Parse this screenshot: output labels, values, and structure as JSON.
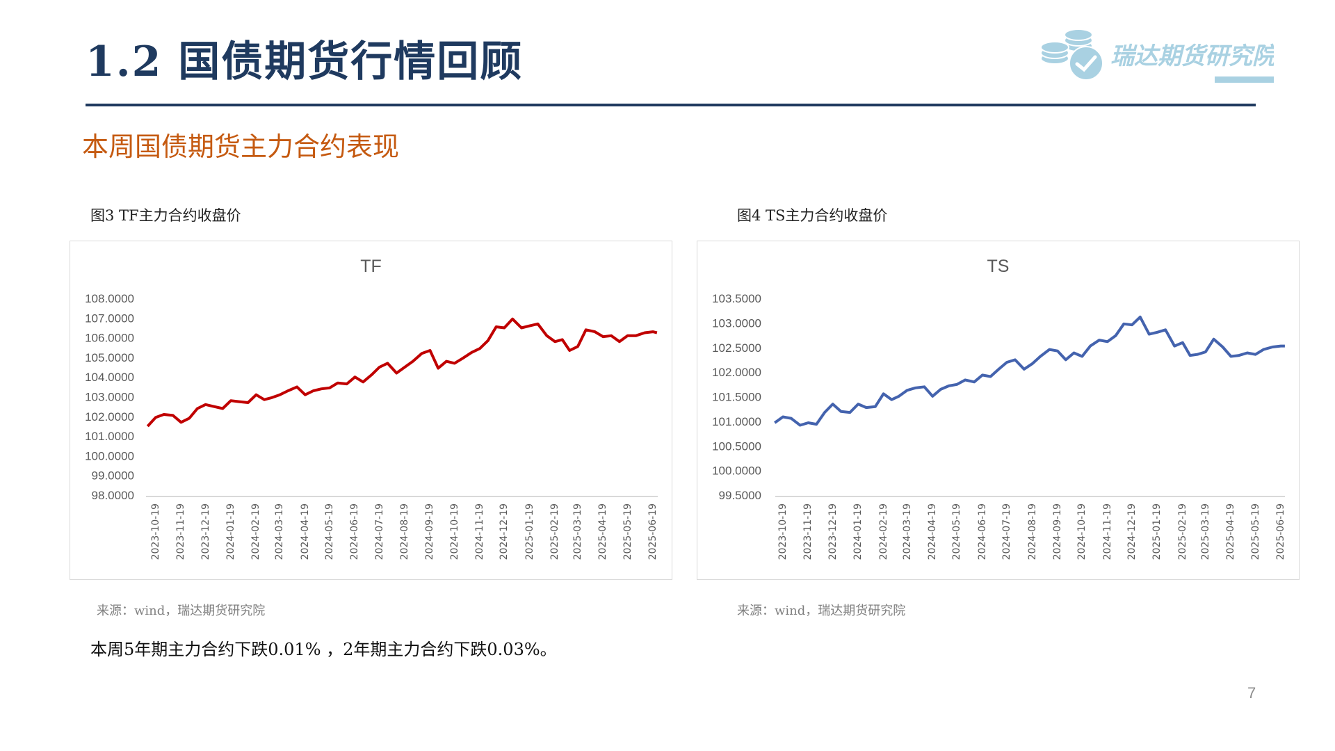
{
  "header": {
    "title": "1.2  国债期货行情回顾",
    "subtitle": "本周国债期货主力合约表现",
    "logo_text": "瑞达期货研究院",
    "logo_color": "#a9d1e2",
    "title_color": "#1f3a5f",
    "subtitle_color": "#c55a11"
  },
  "figures": [
    {
      "caption": "图3 TF主力合约收盘价",
      "source": "来源：wind，瑞达期货研究院"
    },
    {
      "caption": "图4 TS主力合约收盘价",
      "source": "来源：wind，瑞达期货研究院"
    }
  ],
  "summary": "本周5年期主力合约下跌0.01% ，2年期主力合约下跌0.03%。",
  "page_number": "7",
  "chart_data": [
    {
      "type": "line",
      "title": "TF",
      "ylim": [
        98,
        108
      ],
      "y_ticks": [
        "108.0000",
        "107.0000",
        "106.0000",
        "105.0000",
        "104.0000",
        "103.0000",
        "102.0000",
        "101.0000",
        "100.0000",
        "99.0000",
        "98.0000"
      ],
      "y_tick_values": [
        108,
        107,
        106,
        105,
        104,
        103,
        102,
        101,
        100,
        99,
        98
      ],
      "x_ticks": [
        "2023-10-19",
        "2023-11-19",
        "2023-12-19",
        "2024-01-19",
        "2024-02-19",
        "2024-03-19",
        "2024-04-19",
        "2024-05-19",
        "2024-06-19",
        "2024-07-19",
        "2024-08-19",
        "2024-09-19",
        "2024-10-19",
        "2024-11-19",
        "2024-12-19",
        "2025-01-19",
        "2025-02-19",
        "2025-03-19",
        "2025-04-19",
        "2025-05-19",
        "2025-06-19"
      ],
      "grid": false,
      "legend": "none",
      "color": "#c00000",
      "series": [
        {
          "points": [
            [
              "2023-10-09",
              101.5
            ],
            [
              "2023-10-19",
              101.95
            ],
            [
              "2023-10-29",
              102.1
            ],
            [
              "2023-11-09",
              102.05
            ],
            [
              "2023-11-19",
              101.7
            ],
            [
              "2023-11-29",
              101.9
            ],
            [
              "2023-12-09",
              102.4
            ],
            [
              "2023-12-19",
              102.6
            ],
            [
              "2023-12-29",
              102.5
            ],
            [
              "2024-01-09",
              102.4
            ],
            [
              "2024-01-19",
              102.8
            ],
            [
              "2024-01-29",
              102.75
            ],
            [
              "2024-02-09",
              102.7
            ],
            [
              "2024-02-19",
              103.1
            ],
            [
              "2024-02-29",
              102.85
            ],
            [
              "2024-03-09",
              102.95
            ],
            [
              "2024-03-19",
              103.1
            ],
            [
              "2024-03-29",
              103.3
            ],
            [
              "2024-04-09",
              103.5
            ],
            [
              "2024-04-19",
              103.1
            ],
            [
              "2024-04-29",
              103.3
            ],
            [
              "2024-05-09",
              103.4
            ],
            [
              "2024-05-19",
              103.45
            ],
            [
              "2024-05-29",
              103.7
            ],
            [
              "2024-06-09",
              103.65
            ],
            [
              "2024-06-19",
              104.0
            ],
            [
              "2024-06-29",
              103.75
            ],
            [
              "2024-07-09",
              104.1
            ],
            [
              "2024-07-19",
              104.5
            ],
            [
              "2024-07-29",
              104.7
            ],
            [
              "2024-08-09",
              104.2
            ],
            [
              "2024-08-19",
              104.5
            ],
            [
              "2024-08-29",
              104.8
            ],
            [
              "2024-09-09",
              105.2
            ],
            [
              "2024-09-19",
              105.35
            ],
            [
              "2024-09-29",
              104.45
            ],
            [
              "2024-10-09",
              104.8
            ],
            [
              "2024-10-19",
              104.7
            ],
            [
              "2024-10-29",
              104.95
            ],
            [
              "2024-11-09",
              105.25
            ],
            [
              "2024-11-19",
              105.45
            ],
            [
              "2024-11-29",
              105.85
            ],
            [
              "2024-12-09",
              106.55
            ],
            [
              "2024-12-19",
              106.5
            ],
            [
              "2024-12-29",
              106.95
            ],
            [
              "2025-01-09",
              106.5
            ],
            [
              "2025-01-19",
              106.6
            ],
            [
              "2025-01-29",
              106.7
            ],
            [
              "2025-02-09",
              106.1
            ],
            [
              "2025-02-19",
              105.8
            ],
            [
              "2025-02-28",
              105.9
            ],
            [
              "2025-03-09",
              105.35
            ],
            [
              "2025-03-19",
              105.55
            ],
            [
              "2025-03-29",
              106.4
            ],
            [
              "2025-04-09",
              106.3
            ],
            [
              "2025-04-19",
              106.05
            ],
            [
              "2025-04-29",
              106.1
            ],
            [
              "2025-05-09",
              105.8
            ],
            [
              "2025-05-19",
              106.1
            ],
            [
              "2025-05-29",
              106.1
            ],
            [
              "2025-06-09",
              106.25
            ],
            [
              "2025-06-19",
              106.3
            ],
            [
              "2025-06-24",
              106.25
            ]
          ]
        }
      ]
    },
    {
      "type": "line",
      "title": "TS",
      "ylim": [
        99.5,
        103.5
      ],
      "y_ticks": [
        "103.5000",
        "103.0000",
        "102.5000",
        "102.0000",
        "101.5000",
        "101.0000",
        "100.5000",
        "100.0000",
        "99.5000"
      ],
      "y_tick_values": [
        103.5,
        103,
        102.5,
        102,
        101.5,
        101,
        100.5,
        100,
        99.5
      ],
      "x_ticks": [
        "2023-10-19",
        "2023-11-19",
        "2023-12-19",
        "2024-01-19",
        "2024-02-19",
        "2024-03-19",
        "2024-04-19",
        "2024-05-19",
        "2024-06-19",
        "2024-07-19",
        "2024-08-19",
        "2024-09-19",
        "2024-10-19",
        "2024-11-19",
        "2024-12-19",
        "2025-01-19",
        "2025-02-19",
        "2025-03-19",
        "2025-04-19",
        "2025-05-19",
        "2025-06-19"
      ],
      "grid": false,
      "legend": "none",
      "color": "#4463ae",
      "series": [
        {
          "points": [
            [
              "2023-10-09",
              100.97
            ],
            [
              "2023-10-19",
              101.09
            ],
            [
              "2023-10-29",
              101.06
            ],
            [
              "2023-11-09",
              100.92
            ],
            [
              "2023-11-19",
              100.97
            ],
            [
              "2023-11-29",
              100.94
            ],
            [
              "2023-12-09",
              101.18
            ],
            [
              "2023-12-19",
              101.35
            ],
            [
              "2023-12-29",
              101.2
            ],
            [
              "2024-01-09",
              101.18
            ],
            [
              "2024-01-19",
              101.35
            ],
            [
              "2024-01-29",
              101.28
            ],
            [
              "2024-02-09",
              101.3
            ],
            [
              "2024-02-19",
              101.56
            ],
            [
              "2024-02-29",
              101.44
            ],
            [
              "2024-03-09",
              101.51
            ],
            [
              "2024-03-19",
              101.63
            ],
            [
              "2024-03-29",
              101.68
            ],
            [
              "2024-04-09",
              101.7
            ],
            [
              "2024-04-19",
              101.51
            ],
            [
              "2024-04-29",
              101.65
            ],
            [
              "2024-05-09",
              101.72
            ],
            [
              "2024-05-19",
              101.75
            ],
            [
              "2024-05-29",
              101.84
            ],
            [
              "2024-06-09",
              101.8
            ],
            [
              "2024-06-19",
              101.94
            ],
            [
              "2024-06-29",
              101.91
            ],
            [
              "2024-07-09",
              102.06
            ],
            [
              "2024-07-19",
              102.2
            ],
            [
              "2024-07-29",
              102.25
            ],
            [
              "2024-08-09",
              102.06
            ],
            [
              "2024-08-19",
              102.17
            ],
            [
              "2024-08-29",
              102.32
            ],
            [
              "2024-09-09",
              102.46
            ],
            [
              "2024-09-19",
              102.43
            ],
            [
              "2024-09-29",
              102.25
            ],
            [
              "2024-10-09",
              102.39
            ],
            [
              "2024-10-19",
              102.32
            ],
            [
              "2024-10-29",
              102.53
            ],
            [
              "2024-11-09",
              102.65
            ],
            [
              "2024-11-19",
              102.62
            ],
            [
              "2024-11-29",
              102.74
            ],
            [
              "2024-12-09",
              102.98
            ],
            [
              "2024-12-19",
              102.96
            ],
            [
              "2024-12-29",
              103.12
            ],
            [
              "2025-01-09",
              102.77
            ],
            [
              "2025-01-19",
              102.81
            ],
            [
              "2025-01-29",
              102.86
            ],
            [
              "2025-02-09",
              102.53
            ],
            [
              "2025-02-19",
              102.6
            ],
            [
              "2025-02-28",
              102.34
            ],
            [
              "2025-03-09",
              102.36
            ],
            [
              "2025-03-19",
              102.41
            ],
            [
              "2025-03-29",
              102.67
            ],
            [
              "2025-04-09",
              102.51
            ],
            [
              "2025-04-19",
              102.32
            ],
            [
              "2025-04-29",
              102.34
            ],
            [
              "2025-05-09",
              102.39
            ],
            [
              "2025-05-19",
              102.36
            ],
            [
              "2025-05-29",
              102.46
            ],
            [
              "2025-06-09",
              102.51
            ],
            [
              "2025-06-19",
              102.53
            ],
            [
              "2025-06-24",
              102.53
            ]
          ]
        }
      ]
    }
  ]
}
